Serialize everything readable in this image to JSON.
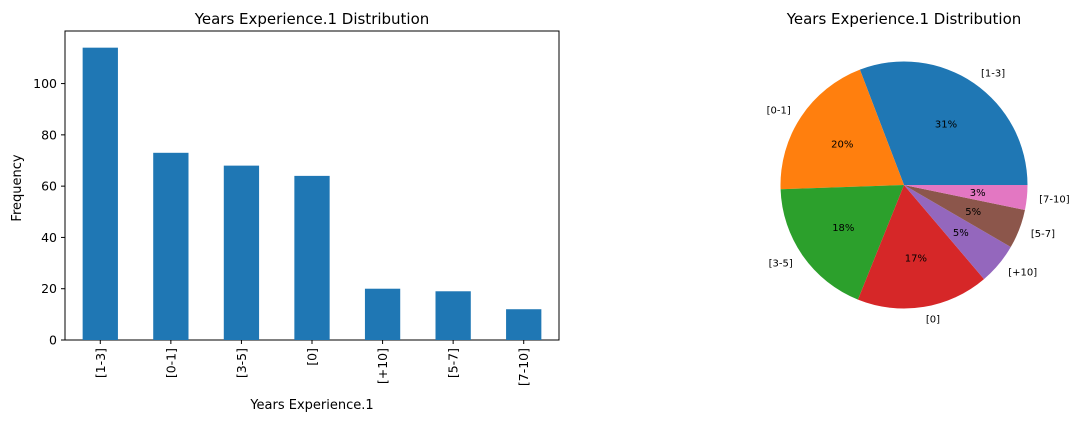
{
  "chart_data": [
    {
      "type": "bar",
      "title": "Years Experience.1 Distribution",
      "xlabel": "Years Experience.1",
      "ylabel": "Frequency",
      "categories": [
        "[1-3]",
        "[0-1]",
        "[3-5]",
        "[0]",
        "[+10]",
        "[5-7]",
        "[7-10]"
      ],
      "values": [
        114,
        73,
        68,
        64,
        20,
        19,
        12
      ],
      "ylim": [
        0,
        120
      ],
      "yticks": [
        "0",
        "20",
        "40",
        "60",
        "80",
        "100"
      ],
      "grid": false,
      "color": "#1f77b4"
    },
    {
      "type": "pie",
      "title": "Years Experience.1 Distribution",
      "categories": [
        "[1-3]",
        "[0-1]",
        "[3-5]",
        "[0]",
        "[+10]",
        "[5-7]",
        "[7-10]"
      ],
      "values": [
        114,
        73,
        68,
        64,
        20,
        19,
        12
      ],
      "percent_labels": [
        "31%",
        "20%",
        "18%",
        "17%",
        "5%",
        "5%",
        "3%"
      ],
      "colors": [
        "#1f77b4",
        "#ff7f0e",
        "#2ca02c",
        "#d62728",
        "#9467bd",
        "#8c564b",
        "#e377c2"
      ]
    }
  ]
}
